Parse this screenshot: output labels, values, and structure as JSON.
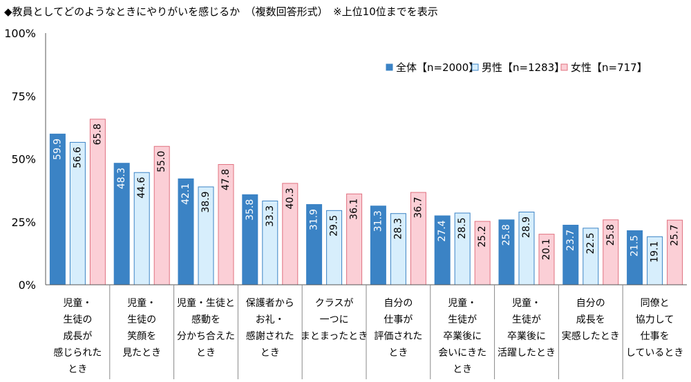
{
  "title": "◆教員としてどのようなときにやりがいを感じるか　（複数回答形式）　※上位10位までを表示",
  "chart_data": {
    "type": "bar",
    "ylim": [
      0,
      100
    ],
    "yticks": [
      "0%",
      "25%",
      "50%",
      "75%",
      "100%"
    ],
    "grid": false,
    "legend_position": "top-right",
    "categories": [
      [
        "児童・",
        "生徒の",
        "成長が",
        "感じられた",
        "とき"
      ],
      [
        "児童・",
        "生徒の",
        "笑顔を",
        "見たとき"
      ],
      [
        "児童・生徒と",
        "感動を",
        "分かち合えた",
        "とき"
      ],
      [
        "保護者から",
        "お礼・",
        "感謝された",
        "とき"
      ],
      [
        "クラスが",
        "一つに",
        "まとまったとき"
      ],
      [
        "自分の",
        "仕事が",
        "評価された",
        "とき"
      ],
      [
        "児童・",
        "生徒が",
        "卒業後に",
        "会いにきた",
        "とき"
      ],
      [
        "児童・",
        "生徒が",
        "卒業後に",
        "活躍したとき"
      ],
      [
        "自分の",
        "成長を",
        "実感したとき"
      ],
      [
        "同僚と",
        "協力して",
        "仕事を",
        "しているとき"
      ]
    ],
    "series": [
      {
        "name": "全体【n=2000】",
        "color": "#3b83c5",
        "stroke": "#3b83c5",
        "label_color": "#ffffff",
        "values": [
          59.9,
          48.3,
          42.1,
          35.8,
          31.9,
          31.3,
          27.4,
          25.8,
          23.7,
          21.5
        ]
      },
      {
        "name": "男性【n=1283】",
        "color": "#d7eefc",
        "stroke": "#3b83c5",
        "label_color": "#000000",
        "values": [
          56.6,
          44.6,
          38.9,
          33.3,
          29.5,
          28.3,
          28.5,
          28.9,
          22.5,
          19.1
        ]
      },
      {
        "name": "女性【n=717】",
        "color": "#fbcfd6",
        "stroke": "#e0707f",
        "label_color": "#000000",
        "values": [
          65.8,
          55.0,
          47.8,
          40.3,
          36.1,
          36.7,
          25.2,
          20.1,
          25.8,
          25.7
        ]
      }
    ]
  }
}
